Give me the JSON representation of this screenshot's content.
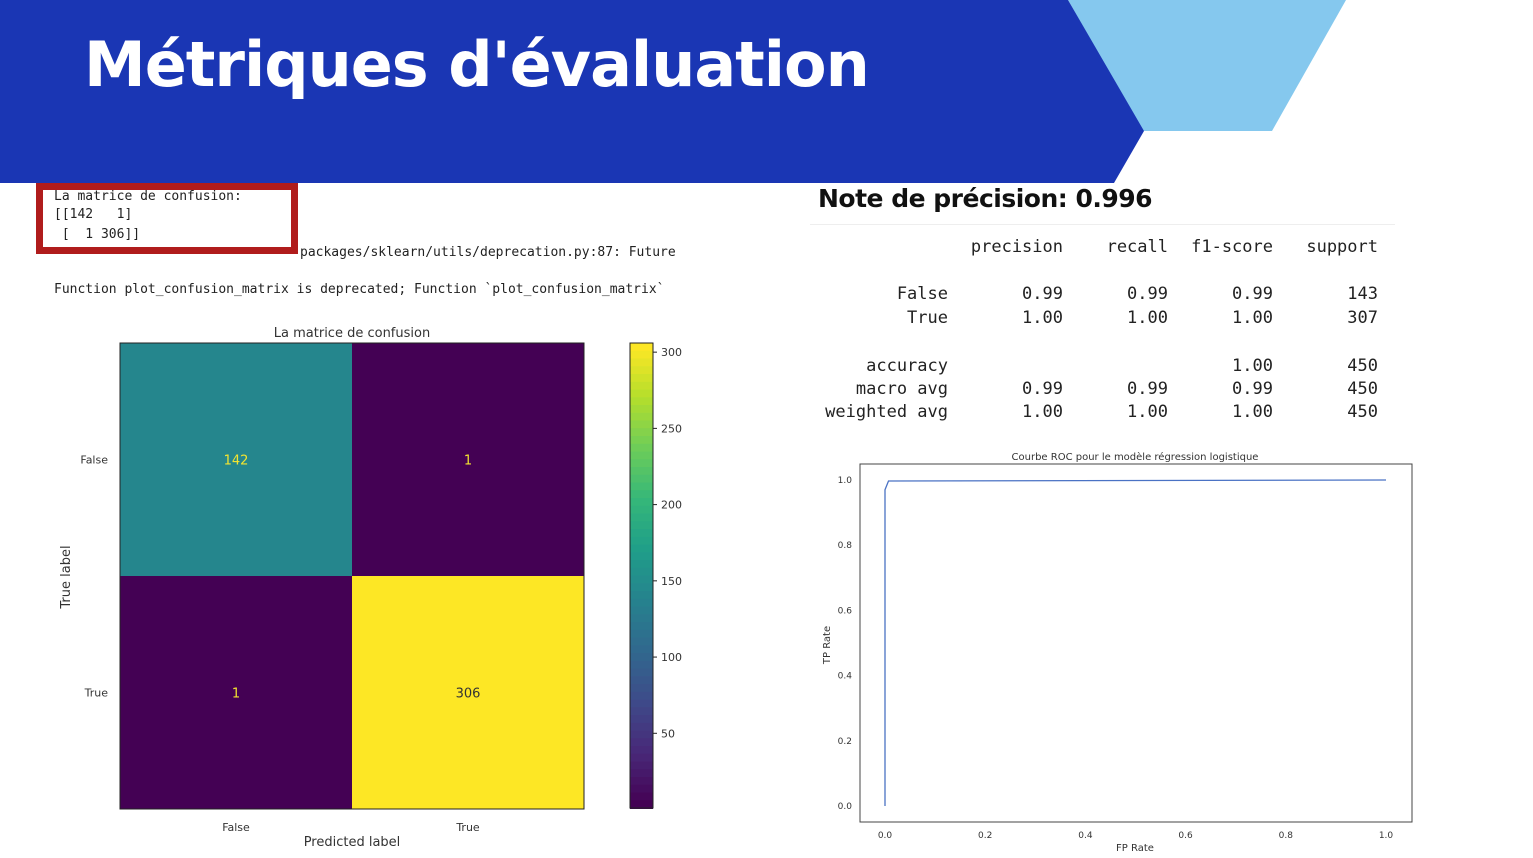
{
  "slide": {
    "title": "Métriques d'évaluation",
    "colors": {
      "banner": "#1a36b4",
      "accent": "#85c8ee",
      "highlight": "#b01c1c"
    }
  },
  "console": {
    "lines": [
      "La matrice de confusion:",
      "[[142   1]",
      " [  1 306]]",
      "packages/sklearn/utils/deprecation.py:87: Future",
      "Function plot_confusion_matrix is deprecated; Function `plot_confusion_matrix`"
    ]
  },
  "report": {
    "accuracy_heading": "Note de précision: 0.996",
    "columns": [
      "precision",
      "recall",
      "f1-score",
      "support"
    ],
    "rows": [
      {
        "label": "False",
        "values": [
          "0.99",
          "0.99",
          "0.99",
          "143"
        ]
      },
      {
        "label": "True",
        "values": [
          "1.00",
          "1.00",
          "1.00",
          "307"
        ]
      },
      {
        "label": "accuracy",
        "values": [
          "",
          "",
          "1.00",
          "450"
        ]
      },
      {
        "label": "macro avg",
        "values": [
          "0.99",
          "0.99",
          "0.99",
          "450"
        ]
      },
      {
        "label": "weighted avg",
        "values": [
          "1.00",
          "1.00",
          "1.00",
          "450"
        ]
      }
    ]
  },
  "chart_data": [
    {
      "type": "heatmap",
      "title": "La matrice de confusion",
      "xlabel": "Predicted label",
      "ylabel": "True label",
      "x_categories": [
        "False",
        "True"
      ],
      "y_categories": [
        "False",
        "True"
      ],
      "values": [
        [
          142,
          1
        ],
        [
          1,
          306
        ]
      ],
      "colormap": "viridis",
      "colorbar": {
        "ticks": [
          50,
          100,
          150,
          200,
          250,
          300
        ],
        "range": [
          1,
          306
        ]
      }
    },
    {
      "type": "line",
      "title": "Courbe ROC pour le modèle régression logistique",
      "xlabel": "FP Rate",
      "ylabel": "TP Rate",
      "xlim": [
        0.0,
        1.0
      ],
      "ylim": [
        0.0,
        1.0
      ],
      "x_ticks": [
        "0.0",
        "0.2",
        "0.4",
        "0.6",
        "0.8",
        "1.0"
      ],
      "y_ticks": [
        "0.0",
        "0.2",
        "0.4",
        "0.6",
        "0.8",
        "1.0"
      ],
      "series": [
        {
          "x": [
            0.0,
            0.0,
            0.007,
            1.0
          ],
          "y": [
            0.0,
            0.97,
            0.997,
            1.0
          ],
          "color": "#4a72c4"
        }
      ]
    }
  ]
}
